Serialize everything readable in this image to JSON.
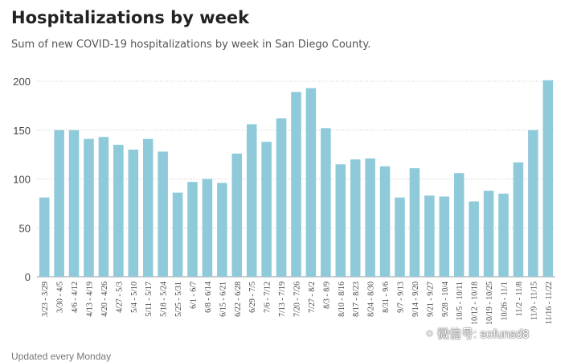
{
  "header": {
    "title": "Hospitalizations by week",
    "subtitle": "Sum of new COVID-19 hospitalizations by week in San Diego County."
  },
  "footer": {
    "note": "Updated every Monday"
  },
  "watermark": {
    "text": "微信号: sofunsd8",
    "icon": "wechat-icon"
  },
  "colors": {
    "bar": "#8ecad9",
    "grid": "#c8c8c8",
    "axis_text": "#444444"
  },
  "chart_data": {
    "type": "bar",
    "title": "Hospitalizations by week",
    "xlabel": "",
    "ylabel": "",
    "ylim": [
      0,
      200
    ],
    "yticks": [
      0,
      50,
      100,
      150,
      200
    ],
    "grid": true,
    "categories": [
      "3/23 - 3/29",
      "3/30 - 4/5",
      "4/6 - 4/12",
      "4/13 - 4/19",
      "4/20 - 4/26",
      "4/27 - 5/3",
      "5/4 - 5/10",
      "5/11 - 5/17",
      "5/18 - 5/24",
      "5/25 - 5/31",
      "6/1 - 6/7",
      "6/8 - 6/14",
      "6/15 - 6/21",
      "6/22 - 6/28",
      "6/29 - 7/5",
      "7/6 - 7/12",
      "7/13 - 7/19",
      "7/20 - 7/26",
      "7/27 - 8/2",
      "8/3 - 8/9",
      "8/10 - 8/16",
      "8/17 - 8/23",
      "8/24 - 8/30",
      "8/31 - 9/6",
      "9/7 - 9/13",
      "9/14 - 9/20",
      "9/21 - 9/27",
      "9/28 - 10/4",
      "10/5 - 10/11",
      "10/12 - 10/18",
      "10/19 - 10/25",
      "10/26 - 11/1",
      "11/2 - 11/8",
      "11/9 - 11/15",
      "11/16 - 11/22"
    ],
    "values": [
      81,
      150,
      150,
      141,
      143,
      135,
      130,
      141,
      128,
      86,
      97,
      100,
      96,
      126,
      156,
      138,
      162,
      189,
      193,
      152,
      115,
      120,
      121,
      113,
      81,
      111,
      83,
      82,
      106,
      77,
      88,
      85,
      117,
      150,
      201
    ]
  }
}
